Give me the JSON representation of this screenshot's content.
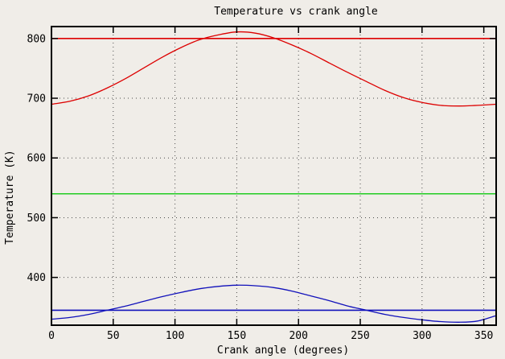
{
  "window": {
    "background": "#f0ede8",
    "border_color": "#000000",
    "grid_color": "#4a4a4a"
  },
  "chart_data": {
    "type": "line",
    "title": "Temperature vs crank angle",
    "xlabel": "Crank angle (degrees)",
    "ylabel": "Temperature (K)",
    "xlim": [
      0,
      360
    ],
    "ylim": [
      320,
      820
    ],
    "xticks": [
      "0",
      "50",
      "100",
      "150",
      "200",
      "250",
      "300",
      "350"
    ],
    "xtick_values": [
      0,
      50,
      100,
      150,
      200,
      250,
      300,
      350
    ],
    "yticks": [
      "400",
      "500",
      "600",
      "700",
      "800"
    ],
    "ytick_values": [
      400,
      500,
      600,
      700,
      800
    ],
    "grid": "dotted",
    "legend": "none",
    "series": [
      {
        "name": "constant-800K-line",
        "type": "constant",
        "value": 800,
        "color": "#dd0000"
      },
      {
        "name": "red-temperature-curve",
        "type": "curve",
        "color": "#dd0000",
        "x": [
          0,
          15,
          30,
          45,
          60,
          75,
          90,
          105,
          120,
          135,
          150,
          165,
          180,
          195,
          210,
          225,
          240,
          255,
          270,
          285,
          300,
          315,
          330,
          345,
          360
        ],
        "y": [
          690,
          695,
          704,
          717,
          733,
          751,
          769,
          785,
          798,
          806,
          811,
          809,
          801,
          789,
          775,
          759,
          743,
          728,
          713,
          701,
          693,
          688,
          687,
          688,
          690
        ]
      },
      {
        "name": "constant-540K-line",
        "type": "constant",
        "value": 540,
        "color": "#22cc22"
      },
      {
        "name": "constant-345K-line",
        "type": "constant",
        "value": 345,
        "color": "#1111bb"
      },
      {
        "name": "blue-temperature-curve",
        "type": "curve",
        "color": "#1111bb",
        "x": [
          0,
          15,
          30,
          45,
          60,
          75,
          90,
          105,
          120,
          135,
          150,
          165,
          180,
          195,
          210,
          225,
          240,
          255,
          270,
          285,
          300,
          315,
          330,
          345,
          360
        ],
        "y": [
          330,
          333,
          338,
          345,
          352,
          360,
          368,
          375,
          381,
          385,
          387,
          386,
          383,
          377,
          369,
          361,
          352,
          345,
          338,
          333,
          329,
          326,
          325,
          327,
          336
        ]
      }
    ]
  }
}
